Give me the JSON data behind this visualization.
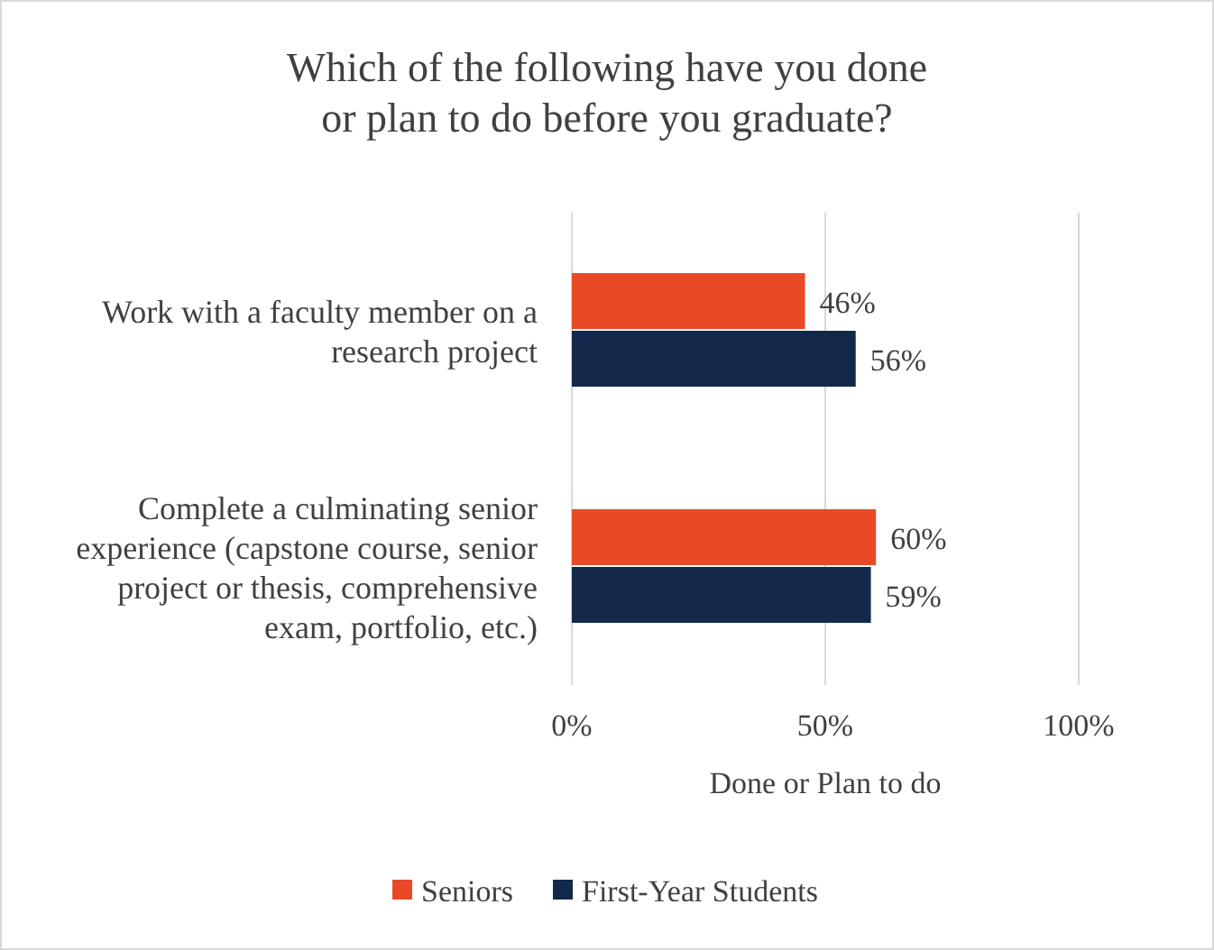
{
  "chart_data": {
    "type": "bar",
    "orientation": "horizontal",
    "title": "Which of the following have you done or plan to do before you graduate?",
    "xlabel": "Done or Plan to do",
    "categories": [
      "Work with a faculty member on a research project",
      "Complete a culminating senior experience (capstone course, senior project or thesis, comprehensive exam, portfolio, etc.)"
    ],
    "series": [
      {
        "name": "Seniors",
        "color": "#e84a27",
        "values": [
          46,
          60
        ],
        "value_labels": [
          "46%",
          "60%"
        ]
      },
      {
        "name": "First-Year Students",
        "color": "#13294b",
        "values": [
          56,
          59
        ],
        "value_labels": [
          "56%",
          "59%"
        ]
      }
    ],
    "xlim": [
      0,
      100
    ],
    "xticks": [
      {
        "value": 0,
        "label": "0%"
      },
      {
        "value": 50,
        "label": "50%"
      },
      {
        "value": 100,
        "label": "100%"
      }
    ],
    "grid": "x",
    "legend": "bottom"
  }
}
